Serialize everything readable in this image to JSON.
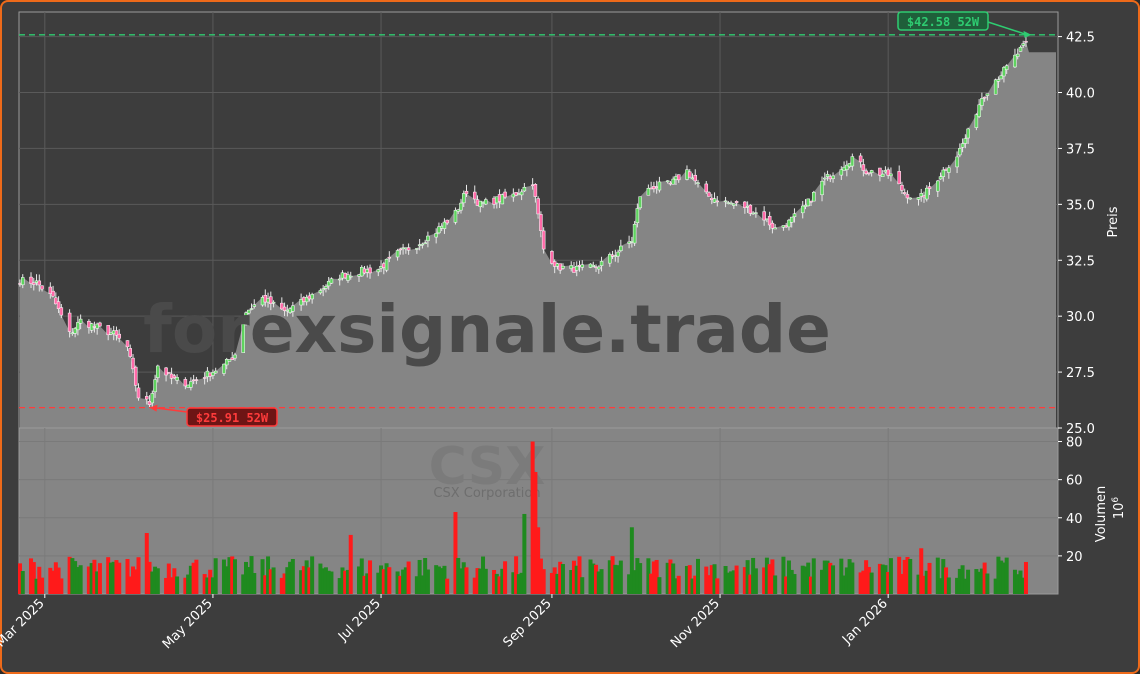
{
  "chart_data": {
    "type": "candlestick",
    "price_axis": {
      "label": "Preis",
      "ylim": [
        25.0,
        43.6
      ],
      "ticks": [
        "25.0",
        "27.5",
        "30.0",
        "32.5",
        "35.0",
        "37.5",
        "40.0",
        "42.5"
      ]
    },
    "volume_axis": {
      "label": "Volumen",
      "multiplier": "10",
      "exponent": "6",
      "ylim": [
        0,
        85
      ],
      "ticks": [
        "20",
        "40",
        "60",
        "80"
      ]
    },
    "x_ticks": [
      "Mar 2025",
      "May 2025",
      "Jul 2025",
      "Sep 2025",
      "Nov 2025",
      "Jan 2026"
    ],
    "x_tick_dates": [
      "2025-03-01",
      "2025-05-01",
      "2025-07-01",
      "2025-09-01",
      "2025-11-01",
      "2026-01-01"
    ],
    "x_range": [
      "2025-02-20",
      "2026-02-24"
    ],
    "close_series": [
      [
        "2025-02-20",
        31.6
      ],
      [
        "2025-02-26",
        31.5
      ],
      [
        "2025-03-04",
        30.8
      ],
      [
        "2025-03-10",
        29.2
      ],
      [
        "2025-03-14",
        29.8
      ],
      [
        "2025-03-20",
        29.5
      ],
      [
        "2025-03-26",
        29.2
      ],
      [
        "2025-03-31",
        28.6
      ],
      [
        "2025-04-04",
        26.4
      ],
      [
        "2025-04-08",
        26.1
      ],
      [
        "2025-04-11",
        27.8
      ],
      [
        "2025-04-16",
        27.2
      ],
      [
        "2025-04-22",
        27.0
      ],
      [
        "2025-04-29",
        27.4
      ],
      [
        "2025-05-05",
        27.8
      ],
      [
        "2025-05-09",
        28.3
      ],
      [
        "2025-05-13",
        30.2
      ],
      [
        "2025-05-19",
        30.8
      ],
      [
        "2025-05-27",
        30.2
      ],
      [
        "2025-06-02",
        30.6
      ],
      [
        "2025-06-09",
        31.2
      ],
      [
        "2025-06-16",
        31.8
      ],
      [
        "2025-06-23",
        32.0
      ],
      [
        "2025-06-30",
        32.1
      ],
      [
        "2025-07-07",
        32.8
      ],
      [
        "2025-07-14",
        33.2
      ],
      [
        "2025-07-21",
        33.8
      ],
      [
        "2025-07-28",
        34.6
      ],
      [
        "2025-08-01",
        35.6
      ],
      [
        "2025-08-06",
        35.0
      ],
      [
        "2025-08-12",
        35.2
      ],
      [
        "2025-08-18",
        35.4
      ],
      [
        "2025-08-25",
        36.0
      ],
      [
        "2025-08-29",
        33.0
      ],
      [
        "2025-09-03",
        32.2
      ],
      [
        "2025-09-10",
        32.1
      ],
      [
        "2025-09-17",
        32.2
      ],
      [
        "2025-09-24",
        32.8
      ],
      [
        "2025-09-30",
        33.4
      ],
      [
        "2025-10-03",
        35.4
      ],
      [
        "2025-10-08",
        35.8
      ],
      [
        "2025-10-14",
        35.9
      ],
      [
        "2025-10-20",
        36.5
      ],
      [
        "2025-10-27",
        35.4
      ],
      [
        "2025-11-03",
        35.1
      ],
      [
        "2025-11-10",
        34.9
      ],
      [
        "2025-11-17",
        34.4
      ],
      [
        "2025-11-21",
        33.9
      ],
      [
        "2025-11-26",
        34.2
      ],
      [
        "2025-12-02",
        34.9
      ],
      [
        "2025-12-08",
        36.0
      ],
      [
        "2025-12-15",
        36.7
      ],
      [
        "2025-12-19",
        37.1
      ],
      [
        "2025-12-24",
        36.5
      ],
      [
        "2026-01-02",
        36.3
      ],
      [
        "2026-01-07",
        35.5
      ],
      [
        "2026-01-12",
        35.2
      ],
      [
        "2026-01-16",
        35.7
      ],
      [
        "2026-01-21",
        36.5
      ],
      [
        "2026-01-26",
        37.2
      ],
      [
        "2026-01-30",
        38.2
      ],
      [
        "2026-02-04",
        39.8
      ],
      [
        "2026-02-09",
        40.6
      ],
      [
        "2026-02-13",
        41.1
      ],
      [
        "2026-02-18",
        41.9
      ],
      [
        "2026-02-22",
        42.4
      ]
    ],
    "volume_spikes": [
      [
        "2025-07-28",
        43,
        "down"
      ],
      [
        "2025-08-25",
        80,
        "down"
      ],
      [
        "2025-08-26",
        64,
        "down"
      ],
      [
        "2025-08-22",
        42,
        "up"
      ],
      [
        "2025-08-27",
        35,
        "down"
      ],
      [
        "2025-09-30",
        35,
        "up"
      ],
      [
        "2025-04-07",
        32,
        "down"
      ],
      [
        "2025-06-20",
        31,
        "down"
      ],
      [
        "2026-01-13",
        24,
        "down"
      ]
    ],
    "annotations": [
      {
        "text": "$42.58 52W",
        "value": 42.58,
        "date": "2026-02-22",
        "color": "#2ecc71"
      },
      {
        "text": "$25.91 52W",
        "value": 25.91,
        "date": "2025-04-08",
        "color": "#ff3b3b"
      }
    ],
    "watermark": "forexsignale.trade",
    "symbol": "CSX",
    "company": "CSX Corporation",
    "colors": {
      "up": "#1f8a1f",
      "down": "#ff1a1a",
      "area": "#858585",
      "high_line": "#2ecc71",
      "low_line": "#ff3b3b",
      "frame": "#ee6a1a"
    }
  }
}
